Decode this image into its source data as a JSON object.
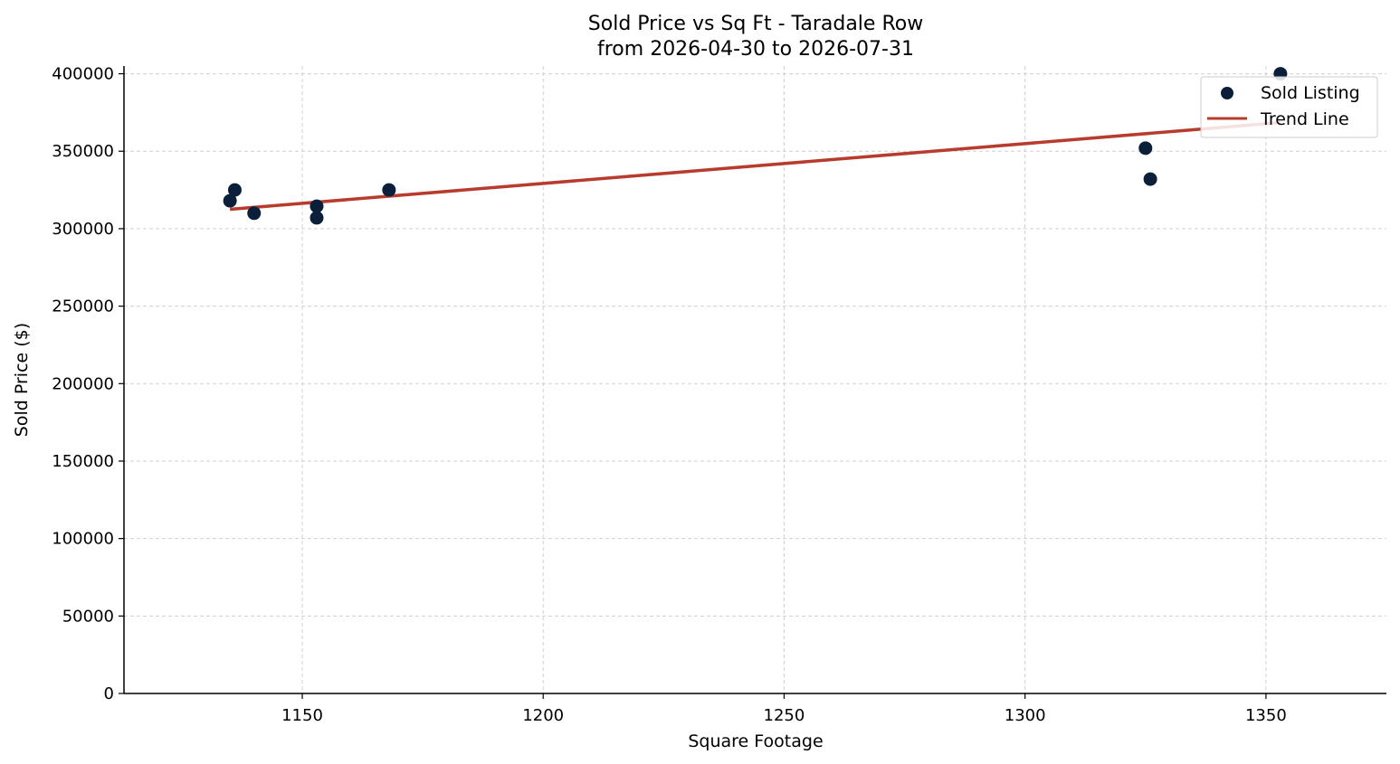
{
  "chart_data": {
    "type": "scatter",
    "title_line1": "Sold Price vs Sq Ft - Taradale Row",
    "title_line2": "from 2026-04-30 to 2026-07-31",
    "xlabel": "Square Footage",
    "ylabel": "Sold Price ($)",
    "xlim": [
      1113,
      1375
    ],
    "ylim": [
      0,
      405000
    ],
    "x_ticks": [
      1150,
      1200,
      1250,
      1300,
      1350
    ],
    "y_ticks": [
      0,
      50000,
      100000,
      150000,
      200000,
      250000,
      300000,
      350000,
      400000
    ],
    "grid": true,
    "legend_position": "top-right",
    "series": [
      {
        "name": "Sold Listing",
        "kind": "scatter",
        "color": "#0b1f3a",
        "points": [
          {
            "x": 1135,
            "y": 318000
          },
          {
            "x": 1136,
            "y": 325000
          },
          {
            "x": 1140,
            "y": 310000
          },
          {
            "x": 1153,
            "y": 314500
          },
          {
            "x": 1153,
            "y": 307000
          },
          {
            "x": 1168,
            "y": 325000
          },
          {
            "x": 1325,
            "y": 352000
          },
          {
            "x": 1326,
            "y": 332000
          },
          {
            "x": 1353,
            "y": 400000
          }
        ]
      },
      {
        "name": "Trend Line",
        "kind": "line",
        "color": "#b83c2e",
        "points": [
          {
            "x": 1135,
            "y": 312500
          },
          {
            "x": 1353,
            "y": 368500
          }
        ]
      }
    ]
  }
}
